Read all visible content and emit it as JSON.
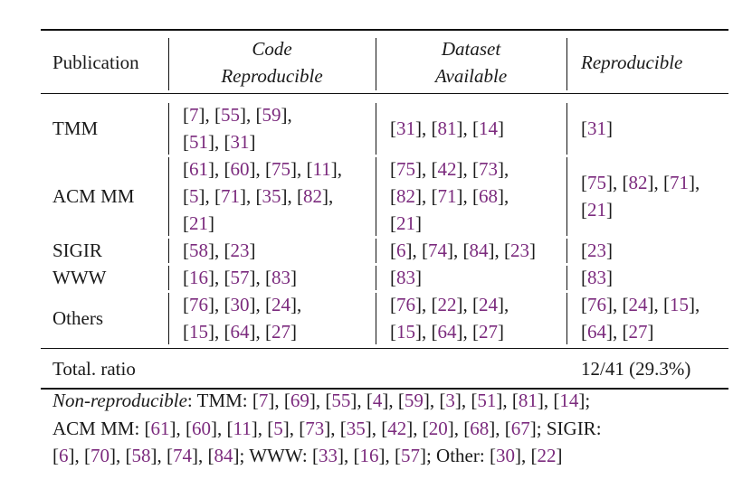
{
  "table": {
    "header": [
      [
        "Publication"
      ],
      [
        "Code",
        "Reproducible"
      ],
      [
        "Dataset",
        "Available"
      ],
      [
        "Reproducible"
      ]
    ],
    "rows": [
      {
        "label": "TMM",
        "cells": [
          [
            "[7], [55], [59],",
            "[51], [31]"
          ],
          [
            "[31], [81], [14]"
          ],
          [
            "[31]"
          ]
        ]
      },
      {
        "label": "ACM MM",
        "cells": [
          [
            "[61], [60], [75], [11],",
            "[5], [71], [35], [82],",
            "[21]"
          ],
          [
            "[75], [42], [73],",
            "[82], [71], [68],",
            "[21]"
          ],
          [
            "[75], [82], [71],",
            "[21]"
          ]
        ]
      },
      {
        "label": "SIGIR",
        "cells": [
          [
            "[58], [23]"
          ],
          [
            "[6], [74], [84], [23]"
          ],
          [
            "[23]"
          ]
        ]
      },
      {
        "label": "WWW",
        "cells": [
          [
            "[16], [57], [83]"
          ],
          [
            "[83]"
          ],
          [
            "[83]"
          ]
        ]
      },
      {
        "label": "Others",
        "cells": [
          [
            "[76], [30], [24],",
            "[15], [64], [27]"
          ],
          [
            "[76], [22], [24],",
            "[15], [64], [27]"
          ],
          [
            "[76], [24], [15],",
            "[64], [27]"
          ]
        ]
      }
    ],
    "total": {
      "label": "Total. ratio",
      "value": "12/41 (29.3%)"
    }
  },
  "footnote": {
    "label": "Non-reproducible",
    "lines": [
      ": TMM: [7], [69], [55], [4], [59], [3], [51], [81], [14];",
      "ACM MM: [61], [60], [11], [5], [73], [35], [42], [20], [68], [67]; SIGIR:",
      "[6], [70], [58], [74], [84]; WWW: [33], [16], [57]; Other: [30], [22]"
    ]
  }
}
